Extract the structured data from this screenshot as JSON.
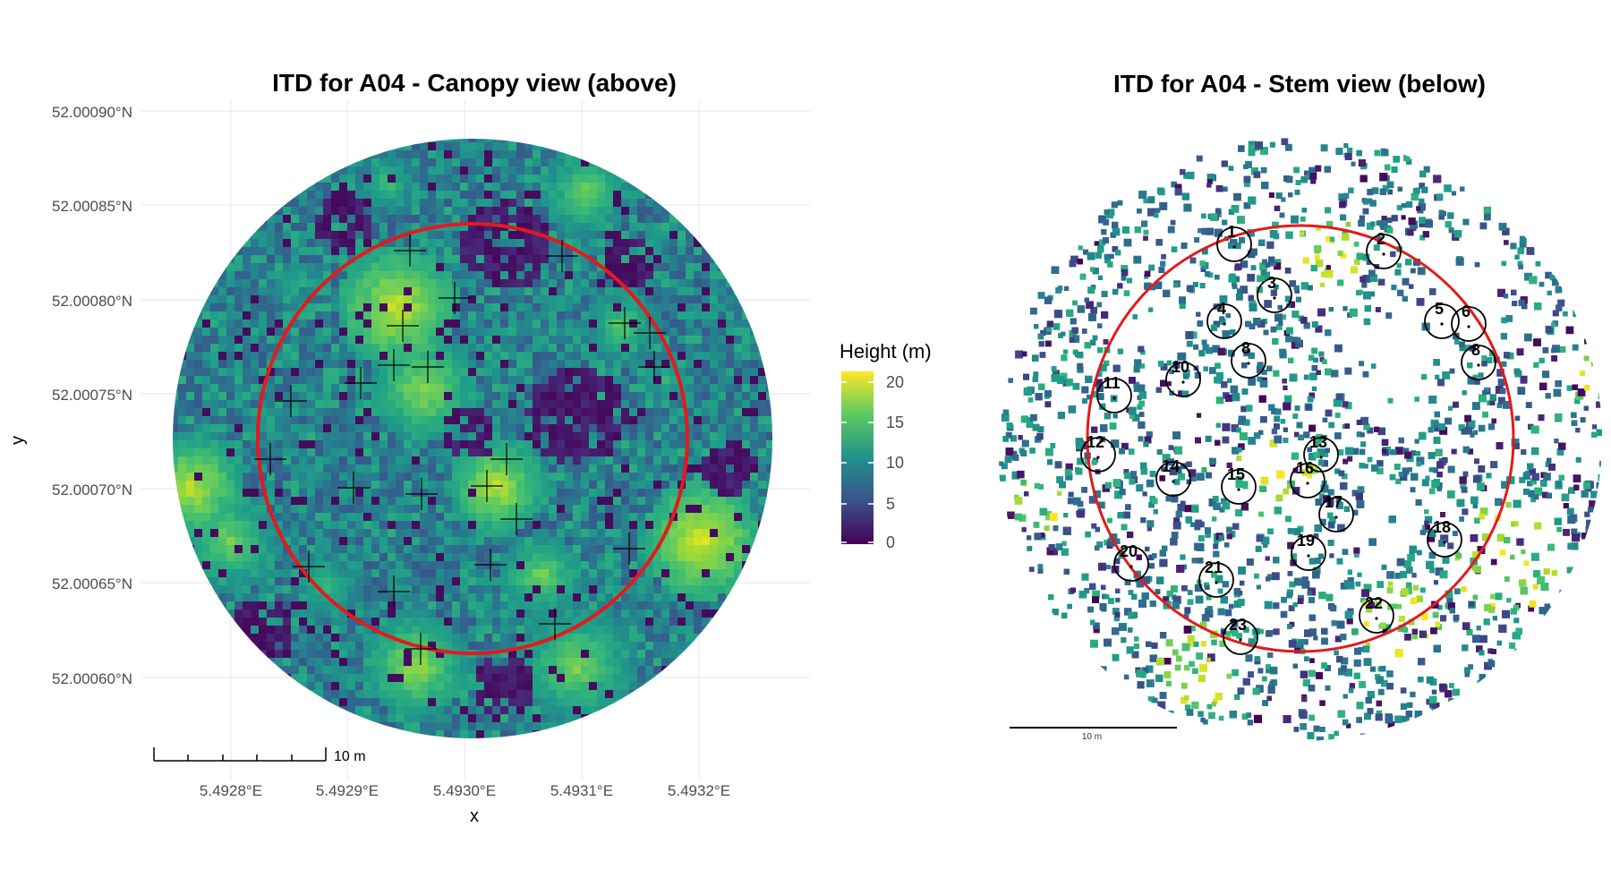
{
  "left_panel": {
    "title": "ITD for A04 - Canopy view (above)",
    "y_axis_title": "y",
    "x_axis_title": "x",
    "y_ticks": [
      "52.00090°N",
      "52.00085°N",
      "52.00080°N",
      "52.00075°N",
      "52.00070°N",
      "52.00065°N",
      "52.00060°N"
    ],
    "x_ticks": [
      "5.4928°E",
      "5.4929°E",
      "5.4930°E",
      "5.4931°E",
      "5.4932°E"
    ],
    "scale_bar_label": "10 m",
    "legend": {
      "title": "Height (m)",
      "ticks": [
        "20",
        "15",
        "10",
        "5",
        "0"
      ],
      "colors": [
        "#fde725",
        "#5ec962",
        "#21918c",
        "#3b528b",
        "#440154"
      ]
    }
  },
  "right_panel": {
    "title": "ITD for A04 - Stem view (below)",
    "scale_bar_label": "10 m",
    "stem_labels": [
      "1",
      "2",
      "3",
      "4",
      "5",
      "6",
      "8",
      "8",
      "10",
      "11",
      "12",
      "13",
      "14",
      "15",
      "16",
      "17",
      "18",
      "19",
      "20",
      "21",
      "22",
      "23"
    ]
  },
  "colors": {
    "plot_circle": "#e31a1c",
    "grid": "#e6e6e6",
    "text": "#000000",
    "axis_text": "#4d4d4d"
  }
}
